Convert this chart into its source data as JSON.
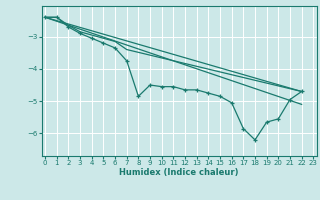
{
  "xlabel": "Humidex (Indice chaleur)",
  "bg_color": "#cce8e8",
  "grid_color": "#ffffff",
  "line_color": "#1a7a6e",
  "xlim": [
    -0.3,
    23.3
  ],
  "ylim": [
    -6.7,
    -2.05
  ],
  "yticks": [
    -6,
    -5,
    -4,
    -3
  ],
  "xticks": [
    0,
    1,
    2,
    3,
    4,
    5,
    6,
    7,
    8,
    9,
    10,
    11,
    12,
    13,
    14,
    15,
    16,
    17,
    18,
    19,
    20,
    21,
    22,
    23
  ],
  "series": [
    [
      0,
      -2.4
    ],
    [
      1,
      -2.4
    ],
    [
      2,
      -2.7
    ],
    [
      3,
      -2.9
    ],
    [
      4,
      -3.05
    ],
    [
      5,
      -3.2
    ],
    [
      6,
      -3.35
    ],
    [
      7,
      -3.75
    ],
    [
      8,
      -4.85
    ],
    [
      9,
      -4.5
    ],
    [
      10,
      -4.55
    ],
    [
      11,
      -4.55
    ],
    [
      12,
      -4.65
    ],
    [
      13,
      -4.65
    ],
    [
      14,
      -4.75
    ],
    [
      15,
      -4.85
    ],
    [
      16,
      -5.05
    ],
    [
      17,
      -5.85
    ],
    [
      18,
      -6.2
    ],
    [
      19,
      -5.65
    ],
    [
      20,
      -5.55
    ],
    [
      21,
      -4.95
    ],
    [
      22,
      -4.7
    ]
  ],
  "line_straight1": [
    [
      0,
      -2.4
    ],
    [
      22,
      -4.7
    ]
  ],
  "line_straight2": [
    [
      0,
      -2.4
    ],
    [
      22,
      -5.1
    ]
  ],
  "line_upper": [
    [
      0,
      -2.4
    ],
    [
      1,
      -2.4
    ],
    [
      2,
      -2.65
    ],
    [
      3,
      -2.85
    ],
    [
      4,
      -2.95
    ],
    [
      5,
      -3.05
    ],
    [
      6,
      -3.15
    ],
    [
      7,
      -3.4
    ],
    [
      22,
      -4.7
    ]
  ]
}
